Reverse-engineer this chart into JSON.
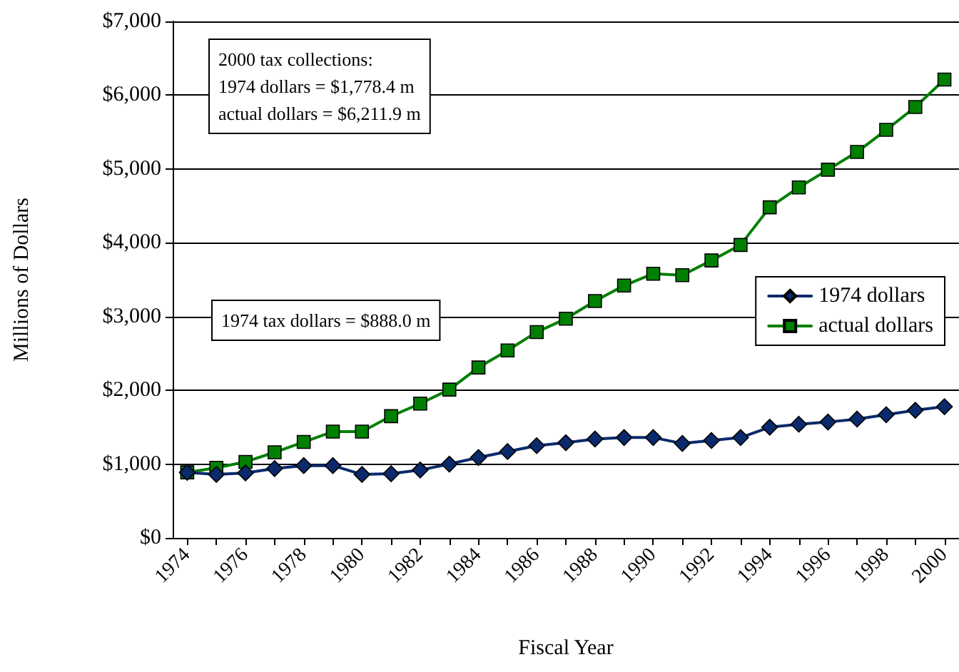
{
  "chart_data": {
    "type": "line",
    "xlabel": "Fiscal Year",
    "ylabel": "Millions of Dollars",
    "categories": [
      "1974",
      null,
      "1976",
      null,
      "1978",
      null,
      "1980",
      null,
      "1982",
      null,
      "1984",
      null,
      "1986",
      null,
      "1988",
      null,
      "1990",
      null,
      "1992",
      null,
      "1994",
      null,
      "1996",
      null,
      "1998",
      null,
      "2000"
    ],
    "series": [
      {
        "name": "1974 dollars",
        "color": "#0a2a6b",
        "marker": "diamond",
        "values": [
          888,
          860,
          880,
          940,
          980,
          980,
          860,
          870,
          920,
          1000,
          1090,
          1170,
          1250,
          1290,
          1340,
          1360,
          1360,
          1280,
          1320,
          1360,
          1500,
          1540,
          1570,
          1610,
          1670,
          1730,
          1778.4
        ]
      },
      {
        "name": "actual dollars",
        "color": "#008000",
        "marker": "square",
        "values": [
          888,
          950,
          1030,
          1160,
          1300,
          1440,
          1440,
          1650,
          1820,
          2010,
          2310,
          2540,
          2790,
          2970,
          3210,
          3420,
          3580,
          3560,
          3760,
          3970,
          4480,
          4750,
          4990,
          5230,
          5530,
          5840,
          6211.9
        ]
      }
    ],
    "ylim": [
      0,
      7000
    ],
    "yticks": [
      {
        "value": 0,
        "label": "$0"
      },
      {
        "value": 1000,
        "label": "$1,000"
      },
      {
        "value": 2000,
        "label": "$2,000"
      },
      {
        "value": 3000,
        "label": "$3,000"
      },
      {
        "value": 4000,
        "label": "$4,000"
      },
      {
        "value": 5000,
        "label": "$5,000"
      },
      {
        "value": 6000,
        "label": "$6,000"
      },
      {
        "value": 7000,
        "label": "$7,000"
      }
    ],
    "grid": "y",
    "legend": "right",
    "line_style": "solid",
    "annotations": [
      "2000 tax collections:\n1974 dollars = $1,778.4 m\nactual dollars = $6,211.9 m",
      "1974 tax dollars = $888.0 m"
    ]
  }
}
